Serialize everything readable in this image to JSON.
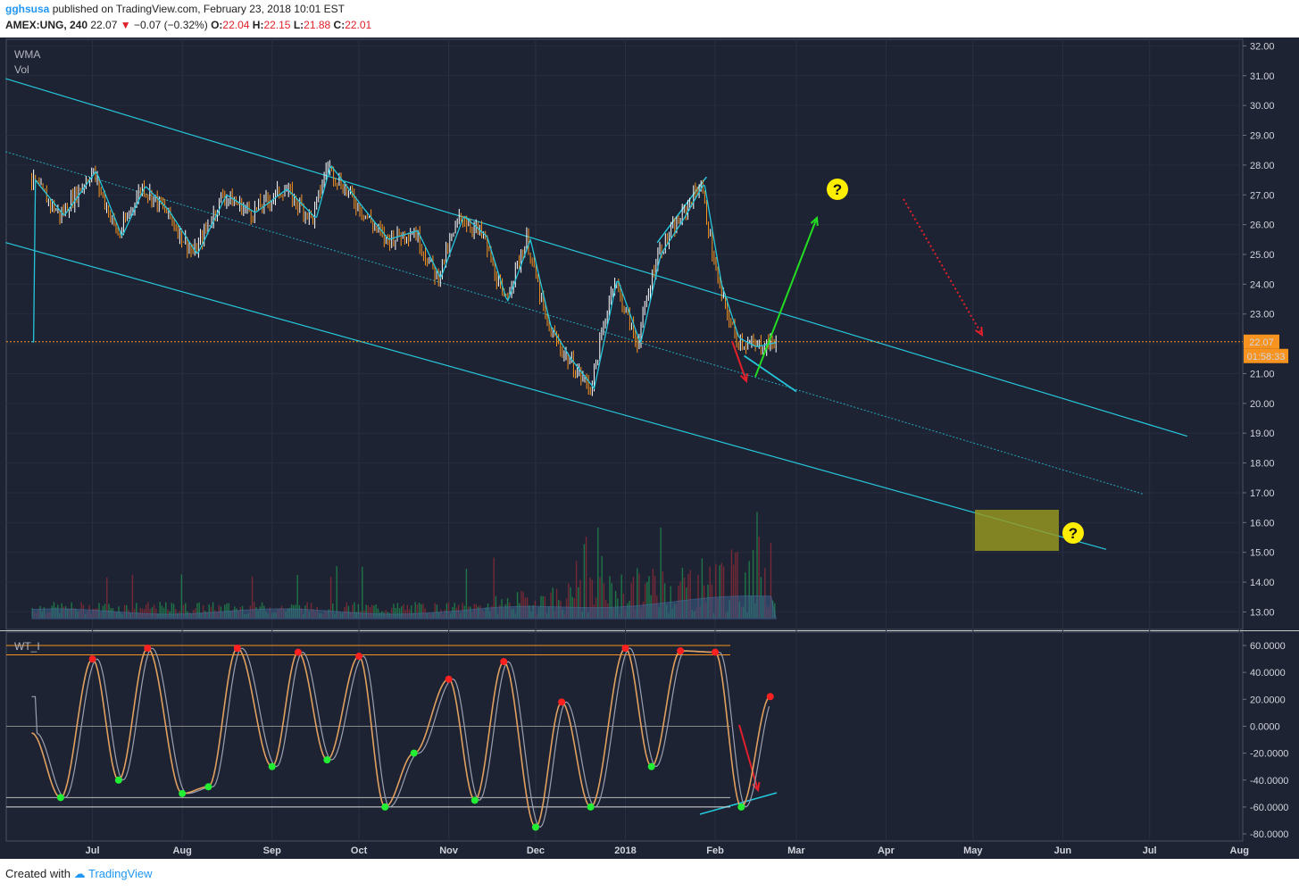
{
  "header": {
    "user": "gghsusa",
    "published": "published on TradingView.com, February 23, 2018 10:01 EST",
    "symbol": "AMEX:UNG, 240",
    "last": "22.07",
    "change": "−0.07 (−0.32%)",
    "open_label": "O:",
    "open": "22.04",
    "high_label": "H:",
    "high": "22.15",
    "low_label": "L:",
    "low": "21.88",
    "close_label": "C:",
    "close": "22.01"
  },
  "footer": {
    "created_with": "Created with",
    "brand": "TradingView"
  },
  "colors": {
    "background": "#1e2333",
    "channel": "#26c6da",
    "candle_up": "#ffffff",
    "candle_down": "#f7931e",
    "wma": "#26c6da",
    "price_line": "#f7931e",
    "arrow_up": "#22dd22",
    "arrow_down": "#e0202a",
    "target_box": "#9b9b1e",
    "question_mark": "#ffee00"
  },
  "chart_data": [
    {
      "type": "line",
      "panel": "price",
      "indicators": [
        "WMA",
        "Vol"
      ],
      "x_ticks": [
        "Jul",
        "Aug",
        "Sep",
        "Oct",
        "Nov",
        "Dec",
        "2018",
        "Feb",
        "Mar",
        "Apr",
        "May",
        "Jun",
        "Jul",
        "Aug"
      ],
      "y_ticks": [
        "32.00",
        "31.00",
        "30.00",
        "29.00",
        "28.00",
        "27.00",
        "26.00",
        "25.00",
        "24.00",
        "23.00",
        "22.00",
        "21.00",
        "20.00",
        "19.00",
        "18.00",
        "17.00",
        "16.00",
        "15.00",
        "14.00",
        "13.00"
      ],
      "ylim": [
        12.6,
        32.3
      ],
      "x": [
        "2017-06-10",
        "2017-06-20",
        "2017-07-01",
        "2017-07-10",
        "2017-07-18",
        "2017-07-26",
        "2017-08-05",
        "2017-08-15",
        "2017-08-25",
        "2017-09-05",
        "2017-09-15",
        "2017-09-20",
        "2017-10-01",
        "2017-10-10",
        "2017-10-20",
        "2017-10-28",
        "2017-11-05",
        "2017-11-13",
        "2017-11-20",
        "2017-11-28",
        "2017-12-05",
        "2017-12-12",
        "2017-12-20",
        "2017-12-28",
        "2018-01-05",
        "2018-01-12",
        "2018-01-20",
        "2018-01-27",
        "2018-02-02",
        "2018-02-08",
        "2018-02-14",
        "2018-02-22"
      ],
      "series": [
        {
          "values": [
            27.5,
            26.3,
            27.8,
            25.6,
            27.3,
            26.5,
            25.0,
            27.0,
            26.4,
            27.2,
            26.2,
            28.0,
            26.6,
            25.5,
            25.8,
            24.2,
            26.3,
            25.6,
            23.4,
            25.5,
            22.6,
            21.5,
            20.5,
            24.2,
            22.0,
            25.0,
            26.2,
            27.4,
            24.0,
            22.2,
            21.9,
            22.07
          ]
        }
      ],
      "current_price": "22.07",
      "countdown": "01:58:33",
      "annotation_marks": [
        "?",
        "?"
      ]
    },
    {
      "type": "line",
      "panel": "oscillator",
      "title": "WT_I",
      "y_ticks": [
        "60.0000",
        "40.0000",
        "20.0000",
        "0.0000",
        "-20.0000",
        "-40.0000",
        "-60.0000",
        "-80.0000"
      ],
      "ylim": [
        -84,
        72
      ],
      "x": [
        "2017-06-10",
        "2017-06-20",
        "2017-07-01",
        "2017-07-10",
        "2017-07-20",
        "2017-08-01",
        "2017-08-10",
        "2017-08-20",
        "2017-09-01",
        "2017-09-10",
        "2017-09-20",
        "2017-10-01",
        "2017-10-10",
        "2017-10-20",
        "2017-11-01",
        "2017-11-10",
        "2017-11-20",
        "2017-12-01",
        "2017-12-10",
        "2017-12-20",
        "2018-01-01",
        "2018-01-10",
        "2018-01-20",
        "2018-02-01",
        "2018-02-10",
        "2018-02-20"
      ],
      "series": [
        {
          "values": [
            -5,
            -53,
            50,
            -40,
            58,
            -50,
            -45,
            58,
            -30,
            55,
            -25,
            52,
            -60,
            -20,
            35,
            -55,
            48,
            -75,
            18,
            -60,
            58,
            -30,
            56,
            55,
            -60,
            22
          ]
        }
      ]
    }
  ]
}
